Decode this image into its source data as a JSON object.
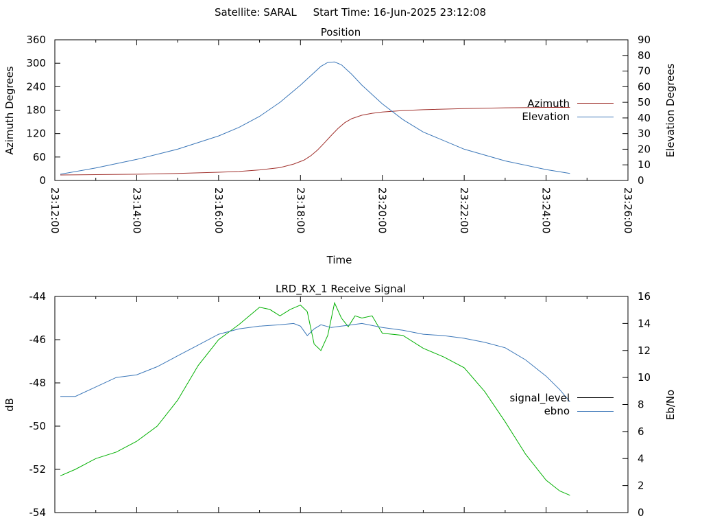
{
  "figure": {
    "title": "Satellite: SARAL     Start Time: 16-Jun-2025 23:12:08"
  },
  "chart_data": [
    {
      "type": "line",
      "title": "Position",
      "xlabel": "Time",
      "ylabel": "Azimuth Degrees",
      "y2label": "Elevation Degrees",
      "x_ticks": [
        "23:12:00",
        "23:14:00",
        "23:16:00",
        "23:18:00",
        "23:20:00",
        "23:22:00",
        "23:24:00",
        "23:26:00"
      ],
      "y_ticks": [
        "0",
        "60",
        "120",
        "180",
        "240",
        "300",
        "360"
      ],
      "y2_ticks": [
        "0",
        "10",
        "20",
        "30",
        "40",
        "50",
        "60",
        "70",
        "80",
        "90"
      ],
      "xlim": [
        "23:12:00",
        "23:26:00"
      ],
      "ylim": [
        0,
        360
      ],
      "y2lim": [
        0,
        90
      ],
      "grid": false,
      "legend_position": "right",
      "series": [
        {
          "name": "Azimuth",
          "axis": "left",
          "color": "#a0302c",
          "x": [
            "23:12:08",
            "23:13:00",
            "23:14:00",
            "23:15:00",
            "23:16:00",
            "23:16:30",
            "23:17:00",
            "23:17:30",
            "23:17:50",
            "23:18:05",
            "23:18:15",
            "23:18:25",
            "23:18:35",
            "23:18:45",
            "23:18:55",
            "23:19:05",
            "23:19:15",
            "23:19:30",
            "23:19:45",
            "23:20:00",
            "23:20:30",
            "23:21:00",
            "23:22:00",
            "23:23:00",
            "23:24:00",
            "23:24:35"
          ],
          "values": [
            14,
            15,
            16,
            18,
            21,
            23,
            27,
            33,
            42,
            52,
            63,
            78,
            96,
            115,
            133,
            148,
            158,
            167,
            172,
            175,
            179,
            181,
            184,
            186,
            187,
            187
          ]
        },
        {
          "name": "Elevation",
          "axis": "right",
          "color": "#3a76b8",
          "x": [
            "23:12:08",
            "23:13:00",
            "23:14:00",
            "23:15:00",
            "23:16:00",
            "23:16:30",
            "23:17:00",
            "23:17:30",
            "23:18:00",
            "23:18:15",
            "23:18:30",
            "23:18:40",
            "23:18:50",
            "23:19:00",
            "23:19:15",
            "23:19:30",
            "23:20:00",
            "23:20:30",
            "23:21:00",
            "23:22:00",
            "23:23:00",
            "23:24:00",
            "23:24:35"
          ],
          "values": [
            4,
            8,
            13.5,
            20,
            28.5,
            34,
            41,
            50,
            61,
            67,
            73,
            75.5,
            75.8,
            74,
            68,
            61,
            49,
            39,
            31,
            20,
            12.5,
            7,
            4.5
          ]
        }
      ]
    },
    {
      "type": "line",
      "title": "LRD_RX_1 Receive Signal",
      "xlabel": "",
      "ylabel": "dB",
      "y2label": "Eb/No",
      "y_ticks": [
        "-44",
        "-46",
        "-48",
        "-50",
        "-52",
        "-54"
      ],
      "y2_ticks": [
        "0",
        "2",
        "4",
        "6",
        "8",
        "10",
        "12",
        "14",
        "16"
      ],
      "xlim": [
        "23:12:00",
        "23:26:00"
      ],
      "ylim": [
        -54,
        -44
      ],
      "y2lim": [
        0,
        16
      ],
      "grid": false,
      "legend_position": "right",
      "series": [
        {
          "name": "signal_level",
          "axis": "left",
          "color": "#00b000",
          "legend_color": "#000000",
          "x": [
            "23:12:08",
            "23:12:30",
            "23:13:00",
            "23:13:30",
            "23:14:00",
            "23:14:30",
            "23:15:00",
            "23:15:30",
            "23:16:00",
            "23:16:30",
            "23:17:00",
            "23:17:15",
            "23:17:30",
            "23:17:45",
            "23:18:00",
            "23:18:10",
            "23:18:20",
            "23:18:30",
            "23:18:40",
            "23:18:50",
            "23:19:00",
            "23:19:10",
            "23:19:20",
            "23:19:30",
            "23:19:45",
            "23:20:00",
            "23:20:30",
            "23:21:00",
            "23:21:30",
            "23:22:00",
            "23:22:30",
            "23:23:00",
            "23:23:30",
            "23:24:00",
            "23:24:20",
            "23:24:35"
          ],
          "values": [
            -52.3,
            -52.0,
            -51.5,
            -51.2,
            -50.7,
            -50.0,
            -48.8,
            -47.2,
            -46.0,
            -45.3,
            -44.5,
            -44.6,
            -44.9,
            -44.6,
            -44.4,
            -44.7,
            -46.2,
            -46.5,
            -45.8,
            -44.3,
            -45.0,
            -45.4,
            -44.9,
            -45.0,
            -44.9,
            -45.7,
            -45.8,
            -46.4,
            -46.8,
            -47.3,
            -48.4,
            -49.8,
            -51.3,
            -52.5,
            -53.0,
            -53.2
          ]
        },
        {
          "name": "ebno",
          "axis": "right",
          "color": "#3a76b8",
          "x": [
            "23:12:08",
            "23:12:30",
            "23:13:00",
            "23:13:30",
            "23:14:00",
            "23:14:30",
            "23:15:00",
            "23:15:30",
            "23:16:00",
            "23:16:30",
            "23:17:00",
            "23:17:30",
            "23:17:50",
            "23:18:00",
            "23:18:10",
            "23:18:20",
            "23:18:30",
            "23:18:45",
            "23:19:00",
            "23:19:30",
            "23:20:00",
            "23:20:30",
            "23:21:00",
            "23:21:30",
            "23:22:00",
            "23:22:30",
            "23:23:00",
            "23:23:30",
            "23:24:00",
            "23:24:20",
            "23:24:35"
          ],
          "values": [
            8.6,
            8.6,
            9.3,
            10.0,
            10.2,
            10.8,
            11.6,
            12.4,
            13.2,
            13.6,
            13.8,
            13.9,
            14.0,
            13.8,
            13.1,
            13.6,
            13.9,
            13.7,
            13.8,
            14.0,
            13.7,
            13.5,
            13.2,
            13.1,
            12.9,
            12.6,
            12.2,
            11.3,
            10.1,
            9.1,
            8.2
          ]
        }
      ]
    }
  ]
}
